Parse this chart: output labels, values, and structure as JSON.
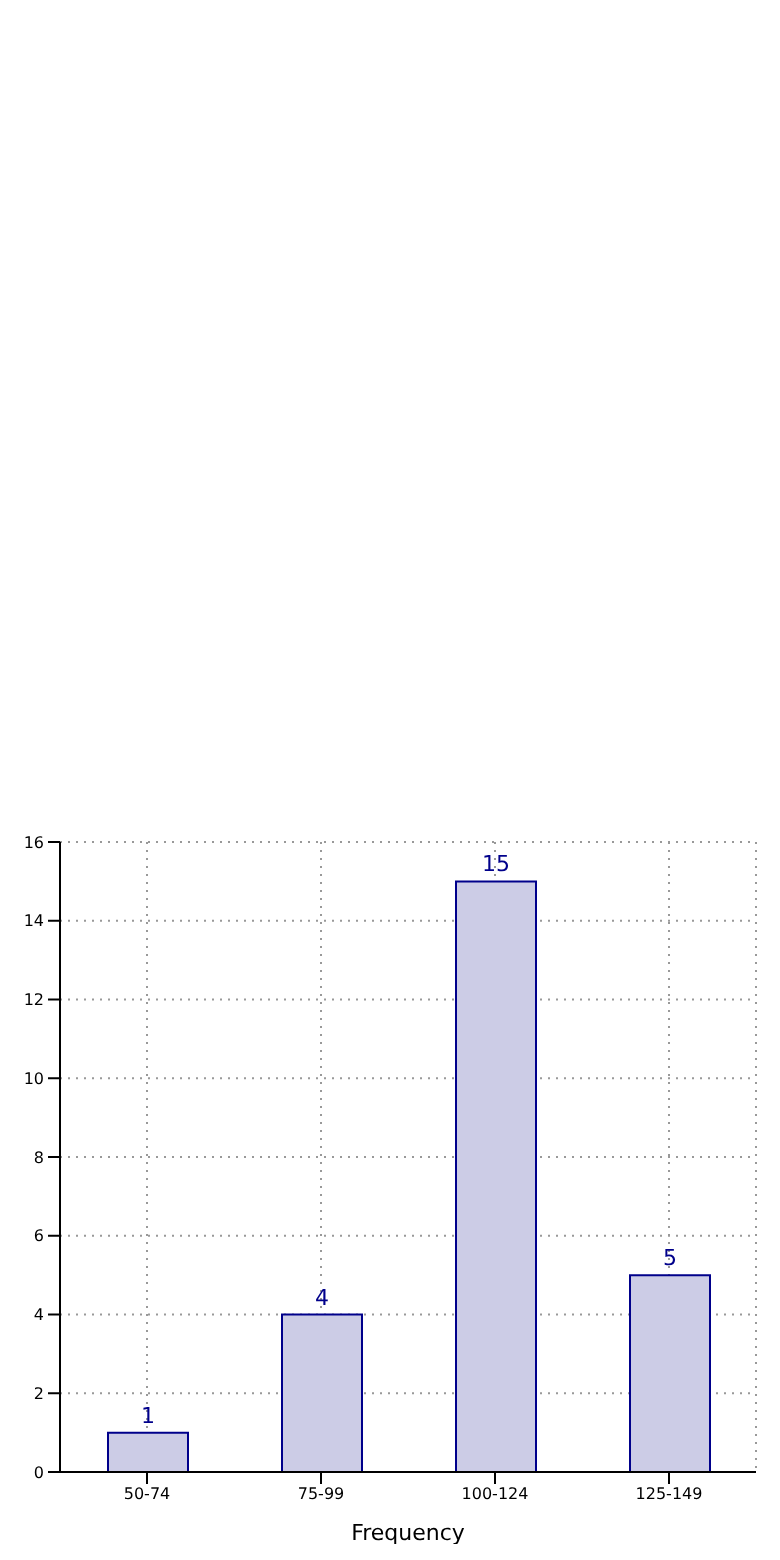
{
  "chart_data": {
    "type": "bar",
    "xlabel": "Frequency",
    "categories": [
      "50-74",
      "75-99",
      "100-124",
      "125-149"
    ],
    "values": [
      1,
      4,
      15,
      5
    ],
    "color": "#cccce6",
    "ylim": [
      0,
      16
    ],
    "yticks": [
      0,
      2,
      4,
      6,
      8,
      10,
      12,
      14,
      16
    ],
    "grid": true,
    "data_labels": true
  }
}
